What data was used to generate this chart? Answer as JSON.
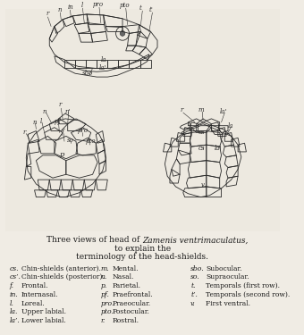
{
  "title_line1": "Three views of head of ",
  "title_italic": "Zamenis ventrimaculatus,",
  "title_line2": " to explain the",
  "title_line3": "terminology of the head-shields.",
  "legend_col1": [
    [
      "cs.",
      "Chin-shields (anterior)."
    ],
    [
      "cs’.",
      "Chin-shields (posterior)."
    ],
    [
      "f.",
      "Frontal."
    ],
    [
      "in.",
      "Internasal."
    ],
    [
      "l.",
      "Loreal."
    ],
    [
      "la.",
      "Upper labial."
    ],
    [
      "la’.",
      "Lower labial."
    ]
  ],
  "legend_col2": [
    [
      "m.",
      "Mental."
    ],
    [
      "n.",
      "Nasal."
    ],
    [
      "p.",
      "Parietal."
    ],
    [
      "pf.",
      "Praefrontal."
    ],
    [
      "pro.",
      "Praeocular."
    ],
    [
      "pto.",
      "Postocular."
    ],
    [
      "r.",
      "Rostral."
    ]
  ],
  "legend_col3": [
    [
      "sbo.",
      "Subocular."
    ],
    [
      "so.",
      "Supraocular."
    ],
    [
      "t.",
      "Temporals (first row)."
    ],
    [
      "t’.",
      "Temporals (second row)."
    ],
    [
      "v.",
      "First ventral."
    ]
  ],
  "bg_color": "#f0ece4",
  "text_color": "#2a2a2a",
  "figsize": [
    3.4,
    3.75
  ],
  "dpi": 100
}
